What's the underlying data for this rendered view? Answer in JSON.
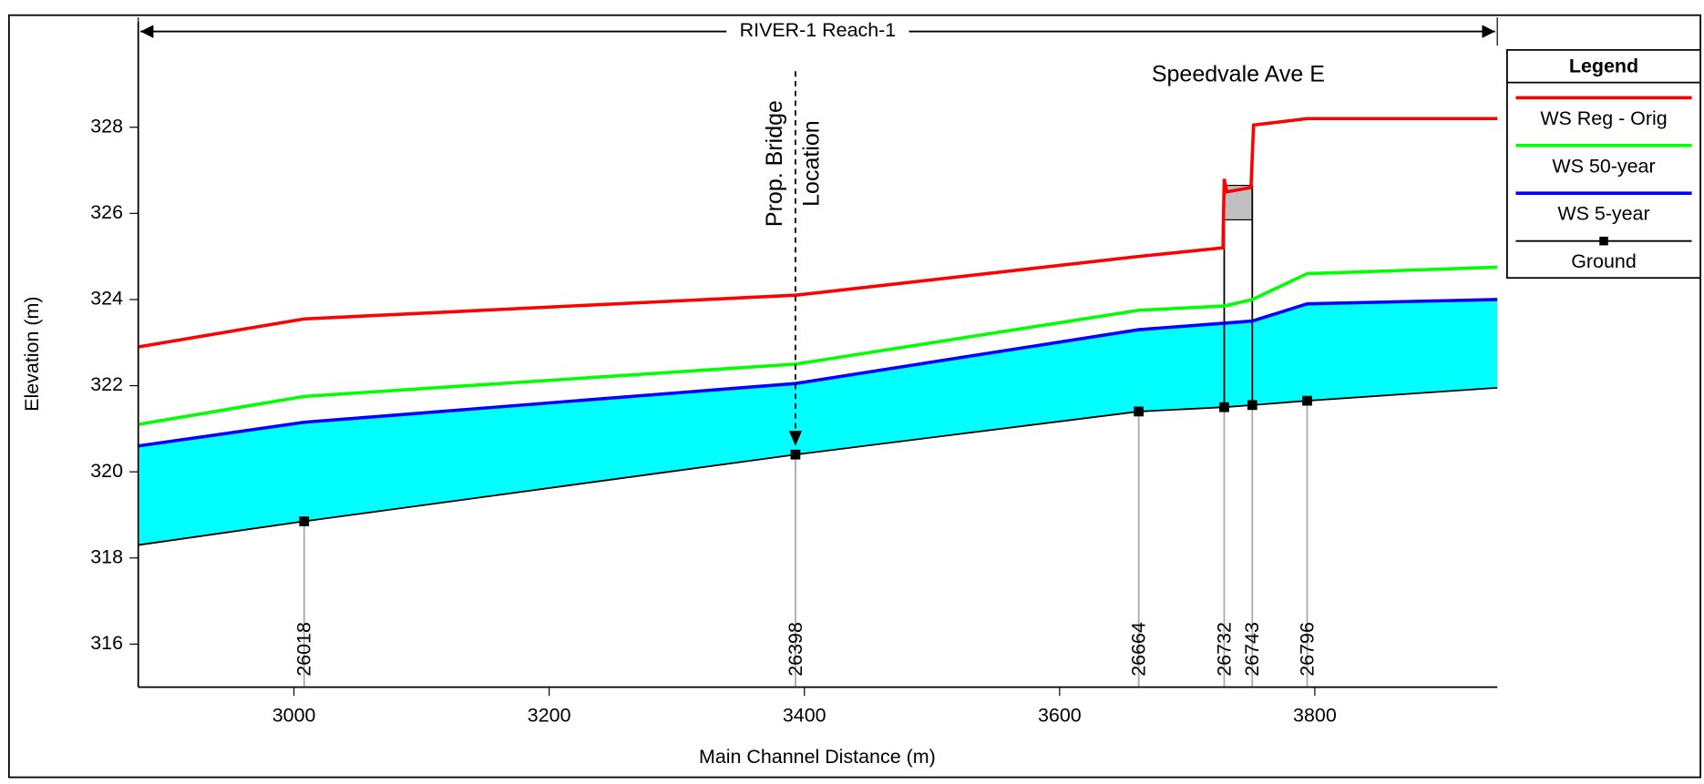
{
  "chart_data": {
    "type": "profile",
    "title": "RIVER-1 Reach-1",
    "xlabel": "Main Channel Distance (m)",
    "ylabel": "Elevation (m)",
    "xlim": [
      2878,
      3943
    ],
    "ylim": [
      315,
      330.45
    ],
    "xticks": [
      3000,
      3200,
      3400,
      3600,
      3800
    ],
    "yticks": [
      316,
      318,
      320,
      322,
      324,
      326,
      328
    ],
    "legend_title": "Legend",
    "annotations": [
      {
        "text": "Speedvale Ave E",
        "x": 3740,
        "y": 329.2
      },
      {
        "lines": [
          "Prop. Bridge",
          "Location"
        ],
        "x": 3393,
        "y_top": 329.3,
        "y_bottom": 320.6
      }
    ],
    "bridge": {
      "x": [
        3729,
        3751
      ],
      "low_chord": 325.85,
      "high_chord": 326.65
    },
    "stations": [
      {
        "label": "26018",
        "x": 3008
      },
      {
        "label": "26398",
        "x": 3393
      },
      {
        "label": "26664",
        "x": 3662
      },
      {
        "label": "26732",
        "x": 3729
      },
      {
        "label": "26743",
        "x": 3751
      },
      {
        "label": "26796",
        "x": 3794
      }
    ],
    "series": [
      {
        "name": "WS Reg - Orig",
        "color": "#ff0000",
        "x": [
          2878,
          3008,
          3393,
          3662,
          3728,
          3729,
          3731,
          3750,
          3752,
          3794,
          3943
        ],
        "values": [
          322.9,
          323.55,
          324.1,
          325.0,
          325.2,
          326.8,
          326.5,
          326.6,
          328.05,
          328.2,
          328.2
        ]
      },
      {
        "name": "WS 50-year",
        "color": "#00ff00",
        "x": [
          2878,
          3008,
          3393,
          3662,
          3729,
          3751,
          3794,
          3943
        ],
        "values": [
          321.1,
          321.75,
          322.5,
          323.75,
          323.85,
          324.0,
          324.6,
          324.75
        ]
      },
      {
        "name": "WS 5-year",
        "color": "#0000ff",
        "fill": "#00ffff",
        "x": [
          2878,
          3008,
          3393,
          3662,
          3729,
          3751,
          3794,
          3943
        ],
        "values": [
          320.6,
          321.15,
          322.05,
          323.3,
          323.45,
          323.5,
          323.9,
          324.0
        ]
      },
      {
        "name": "Ground",
        "color": "#000000",
        "markers": true,
        "x": [
          2878,
          3008,
          3393,
          3662,
          3729,
          3751,
          3794,
          3943
        ],
        "values": [
          318.3,
          318.85,
          320.4,
          321.4,
          321.5,
          321.55,
          321.65,
          321.95
        ]
      }
    ]
  }
}
